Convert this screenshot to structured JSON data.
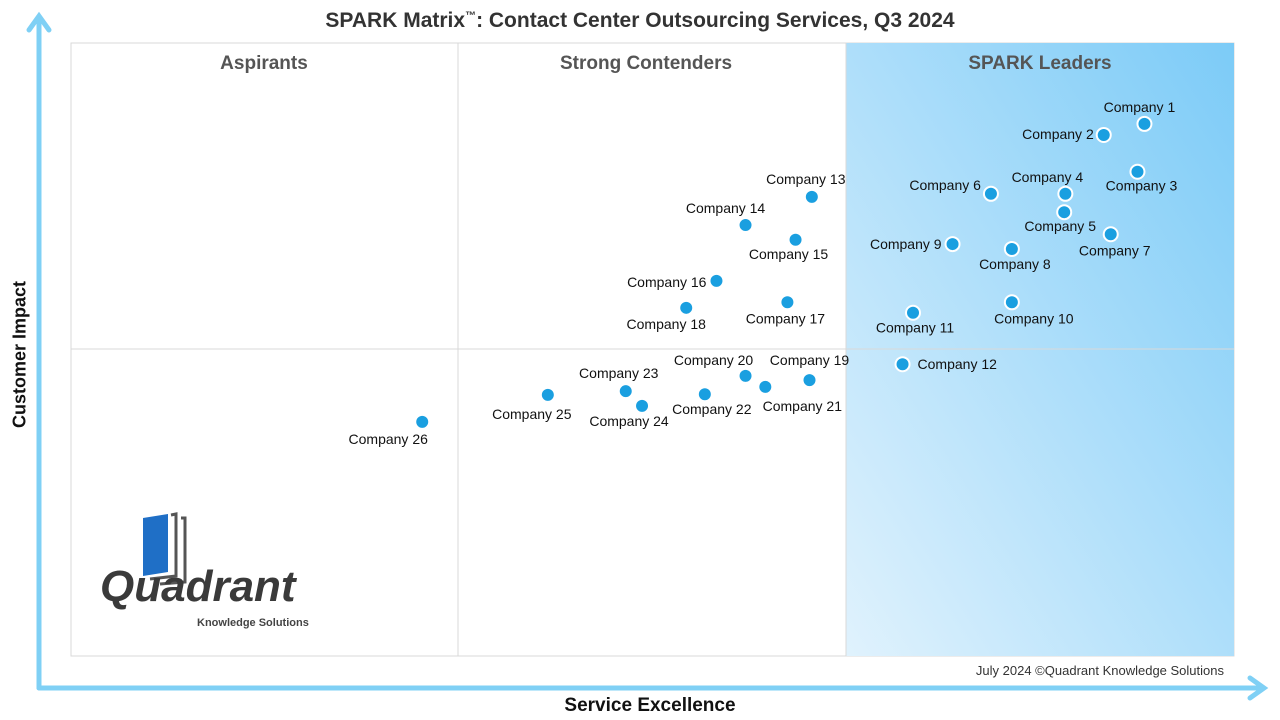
{
  "chart_data": {
    "type": "scatter",
    "title": "SPARK Matrix",
    "title_tm": "™",
    "title_rest": ": Contact Center Outsourcing Services, Q3 2024",
    "xlabel": "Service Excellence",
    "ylabel": "Customer Impact",
    "xlim": [
      0,
      100
    ],
    "ylim": [
      0,
      100
    ],
    "quadrants": [
      "Aspirants",
      "Strong Contenders",
      "SPARK Leaders"
    ],
    "grid": true,
    "credit": "July 2024 ©Quadrant Knowledge Solutions",
    "logo_text": "Quadrant Knowledge Solutions",
    "colors": {
      "point": "#1a9fe0",
      "axis": "#7fd0f5",
      "leaders_light": "#e0f2fd",
      "leaders_dark": "#7ccbf7"
    },
    "points": [
      {
        "name": "Company 1",
        "x": 92.3,
        "y": 86.8
      },
      {
        "name": "Company 2",
        "x": 88.8,
        "y": 85.0
      },
      {
        "name": "Company 3",
        "x": 91.7,
        "y": 79.0
      },
      {
        "name": "Company 4",
        "x": 85.5,
        "y": 75.4
      },
      {
        "name": "Company 5",
        "x": 85.4,
        "y": 72.4
      },
      {
        "name": "Company 6",
        "x": 79.1,
        "y": 75.4
      },
      {
        "name": "Company 7",
        "x": 89.4,
        "y": 68.8
      },
      {
        "name": "Company 8",
        "x": 80.9,
        "y": 66.4
      },
      {
        "name": "Company 9",
        "x": 75.8,
        "y": 67.2
      },
      {
        "name": "Company 10",
        "x": 80.9,
        "y": 57.7
      },
      {
        "name": "Company 11",
        "x": 72.4,
        "y": 56.0
      },
      {
        "name": "Company 12",
        "x": 71.5,
        "y": 47.6
      },
      {
        "name": "Company 13",
        "x": 63.7,
        "y": 74.9
      },
      {
        "name": "Company 14",
        "x": 58.0,
        "y": 70.3
      },
      {
        "name": "Company 15",
        "x": 62.3,
        "y": 67.9
      },
      {
        "name": "Company 16",
        "x": 55.5,
        "y": 61.2
      },
      {
        "name": "Company 17",
        "x": 61.6,
        "y": 57.7
      },
      {
        "name": "Company 18",
        "x": 52.9,
        "y": 56.8
      },
      {
        "name": "Company 19",
        "x": 63.5,
        "y": 45.0
      },
      {
        "name": "Company 20",
        "x": 58.0,
        "y": 45.7
      },
      {
        "name": "Company 21",
        "x": 59.7,
        "y": 43.9
      },
      {
        "name": "Company 22",
        "x": 54.5,
        "y": 42.7
      },
      {
        "name": "Company 23",
        "x": 47.7,
        "y": 43.2
      },
      {
        "name": "Company 24",
        "x": 49.1,
        "y": 40.8
      },
      {
        "name": "Company 25",
        "x": 41.0,
        "y": 42.6
      },
      {
        "name": "Company 26",
        "x": 30.2,
        "y": 38.2
      }
    ]
  }
}
